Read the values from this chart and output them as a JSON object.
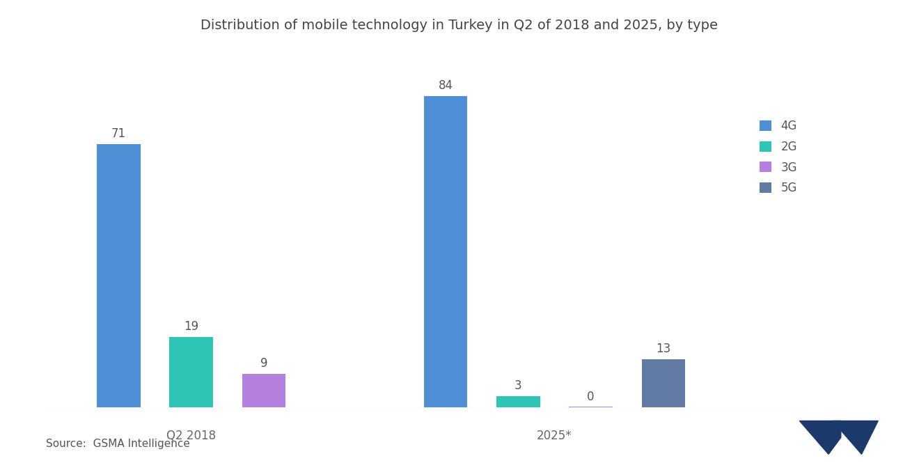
{
  "title": "Distribution of mobile technology in Turkey in Q2 of 2018 and 2025, by type",
  "groups": [
    "Q2 2018",
    "2025*"
  ],
  "categories": [
    "4G",
    "2G",
    "3G",
    "5G"
  ],
  "values_2018": [
    71,
    19,
    9,
    null
  ],
  "values_2025": [
    84,
    3,
    0,
    13
  ],
  "colors": {
    "4G": "#4F8FD6",
    "2G": "#2EC4B6",
    "3G": "#B57FE0",
    "5G": "#627BA4"
  },
  "bar_width": 0.6,
  "ylim": [
    0,
    95
  ],
  "source_text": "Source:  GSMA Intelligence",
  "background_color": "#FFFFFF",
  "title_fontsize": 14,
  "label_fontsize": 12,
  "source_fontsize": 11,
  "legend_fontsize": 12,
  "tick_label_color": "#666666",
  "value_label_color": "#555555"
}
